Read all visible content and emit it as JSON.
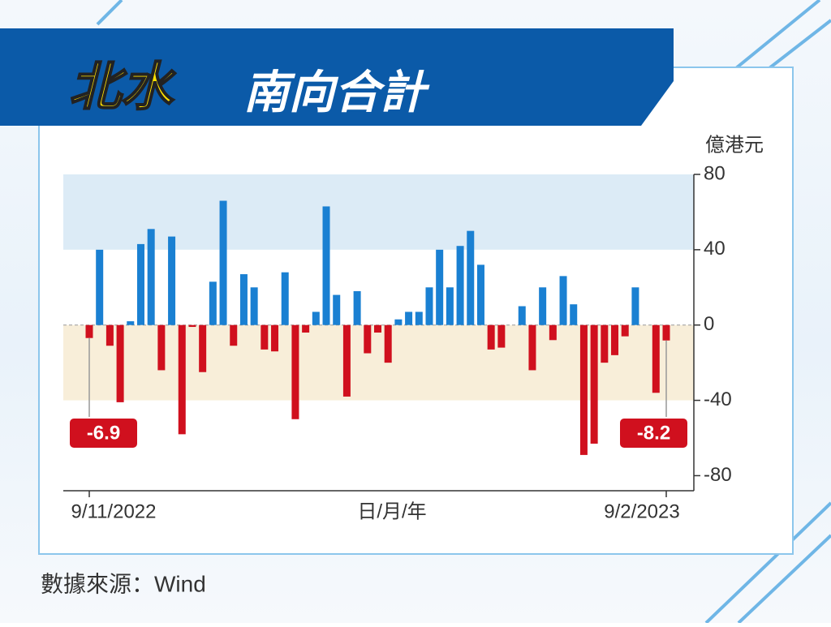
{
  "chart_data": {
    "type": "bar",
    "title_highlight": "北水",
    "title": "南向合計",
    "unit": "億港元",
    "x_label": "日/月/年",
    "source": "數據來源：Wind",
    "categories": [
      "9/11/2022",
      null,
      null,
      null,
      null,
      null,
      null,
      null,
      null,
      null,
      null,
      null,
      null,
      null,
      null,
      null,
      null,
      null,
      null,
      null,
      null,
      null,
      null,
      null,
      null,
      null,
      null,
      null,
      null,
      null,
      null,
      null,
      null,
      null,
      null,
      null,
      null,
      null,
      null,
      null,
      null,
      null,
      null,
      null,
      null,
      null,
      null,
      null,
      null,
      null,
      null,
      null,
      null,
      null,
      null,
      null,
      "9/2/2023"
    ],
    "values": [
      -6.9,
      40,
      -11,
      -41,
      2,
      43,
      51,
      -24,
      47,
      -58,
      -1,
      -25,
      23,
      66,
      -11,
      27,
      20,
      -13,
      -14,
      28,
      -50,
      -4,
      7,
      63,
      16,
      -38,
      18,
      -15,
      -4,
      -20,
      3,
      7,
      7,
      20,
      40,
      20,
      42,
      50,
      32,
      -13,
      -12,
      0,
      10,
      -24,
      20,
      -8,
      26,
      11,
      -69,
      -63,
      -20,
      -16,
      -6,
      20,
      0,
      -36,
      -8.2
    ],
    "labeled_points": [
      0,
      56
    ],
    "positive_color": "#1a80d2",
    "negative_color": "#d0101e",
    "ylim": [
      -88,
      80
    ],
    "yticks": [
      80,
      40,
      0,
      -40,
      -80
    ],
    "bands": [
      {
        "from": 40,
        "to": 80,
        "color": "#dcebf6"
      },
      {
        "from": -40,
        "to": 0,
        "color": "#f8eed9"
      }
    ]
  }
}
